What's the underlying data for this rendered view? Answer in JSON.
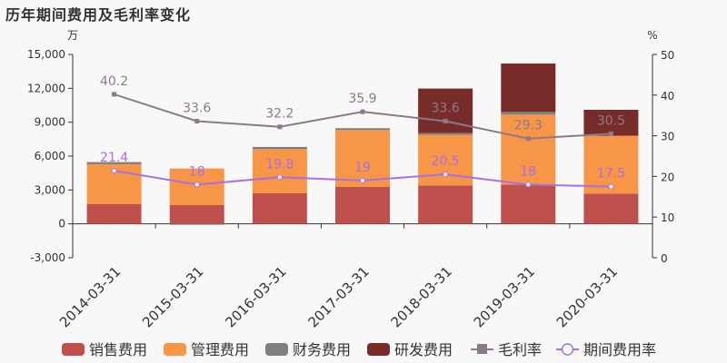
{
  "title": "历年期间费用及毛利率变化",
  "chart_data": {
    "type": "bar+line",
    "title": "历年期间费用及毛利率变化",
    "categories": [
      "2014-03-31",
      "2015-03-31",
      "2016-03-31",
      "2017-03-31",
      "2018-03-31",
      "2019-03-31",
      "2020-03-31"
    ],
    "left_axis": {
      "unit": "万",
      "ylim": [
        -3000,
        15000
      ],
      "ticks": [
        "-3,000",
        "0",
        "3,000",
        "6,000",
        "9,000",
        "12,000",
        "15,000"
      ]
    },
    "right_axis": {
      "unit": "%",
      "ylim": [
        0,
        50
      ],
      "ticks": [
        "0",
        "10",
        "20",
        "30",
        "40",
        "50"
      ]
    },
    "stacked_series": [
      {
        "name": "销售费用",
        "color": "#c0504d",
        "values": [
          1740,
          1660,
          2710,
          3270,
          3400,
          3480,
          2680
        ]
      },
      {
        "name": "管理费用",
        "color": "#f79646",
        "values": [
          3540,
          3240,
          3910,
          5040,
          4480,
          6190,
          5120
        ]
      },
      {
        "name": "财务费用",
        "color": "#7f7f7f",
        "values": [
          190,
          -80,
          190,
          160,
          160,
          240,
          0
        ]
      },
      {
        "name": "研发费用",
        "color": "#772c2a",
        "values": [
          0,
          0,
          0,
          0,
          3940,
          4290,
          2300
        ]
      }
    ],
    "line_series": [
      {
        "name": "毛利率",
        "color": "#8c7a8c",
        "axis": "right",
        "marker": "square",
        "values": [
          40.2,
          33.6,
          32.2,
          35.9,
          33.6,
          29.3,
          30.5
        ]
      },
      {
        "name": "期间费用率",
        "color": "#a96ee8",
        "axis": "right",
        "marker": "circle",
        "values": [
          21.4,
          18,
          19.8,
          19,
          20.5,
          18,
          17.5
        ]
      }
    ],
    "legend_position": "bottom",
    "grid": false
  }
}
